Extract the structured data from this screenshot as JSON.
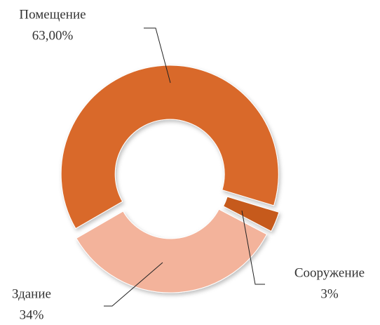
{
  "chart_data": {
    "type": "donut",
    "categories": [
      "Помещение",
      "Сооружение",
      "Здание"
    ],
    "values": [
      63,
      3,
      34
    ],
    "value_labels": [
      "63,00%",
      "3%",
      "34%"
    ],
    "colors": [
      "#d9692a",
      "#c65a1e",
      "#f3b39b"
    ]
  }
}
